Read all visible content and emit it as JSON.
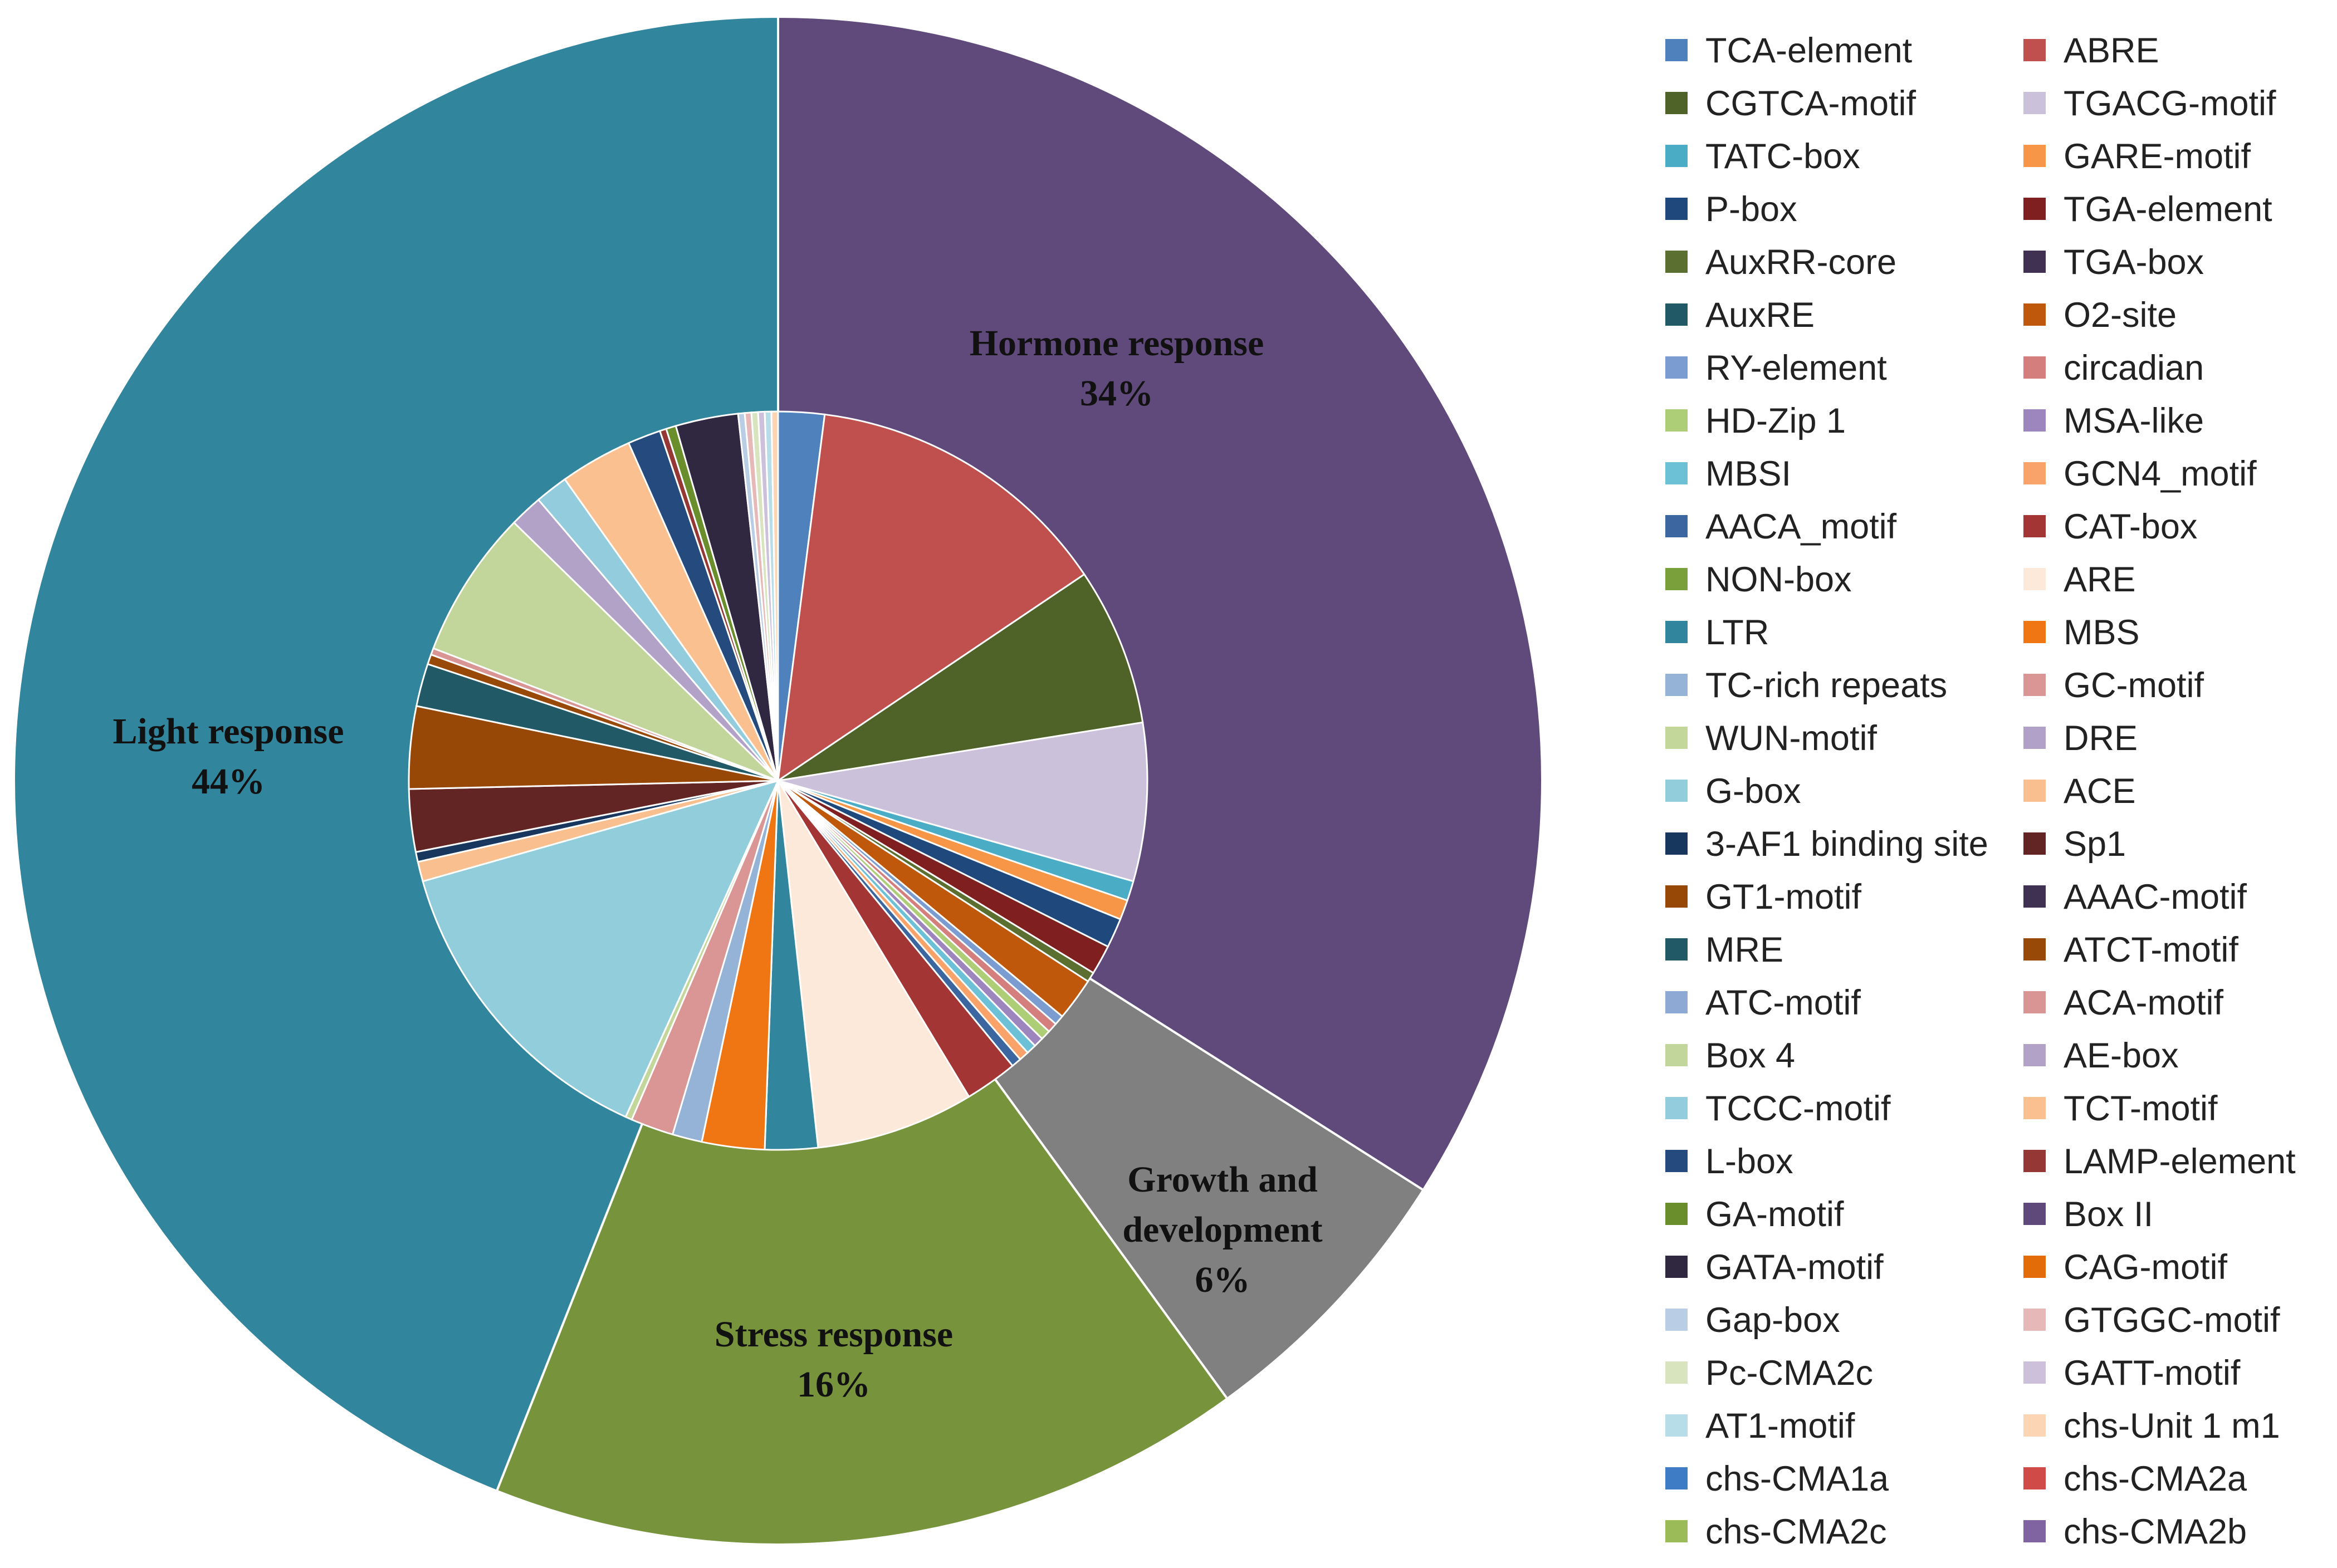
{
  "chart_data": {
    "type": "pie",
    "title": "",
    "outer_ring": [
      {
        "name": "Hormone response",
        "percent_label": "34%",
        "value": 34,
        "color": "#604A7B"
      },
      {
        "name": "Growth and development",
        "percent_label": "6%",
        "value": 6,
        "color": "#808080"
      },
      {
        "name": "Stress response",
        "percent_label": "16%",
        "value": 16,
        "color": "#77933C"
      },
      {
        "name": "Light response",
        "percent_label": "44%",
        "value": 44,
        "color": "#31859C"
      }
    ],
    "inner_pie": [
      {
        "name": "TCA-element",
        "value": 1.4,
        "color": "#4F81BD"
      },
      {
        "name": "ABRE",
        "value": 9.4,
        "color": "#C0504D"
      },
      {
        "name": "CGTCA-motif",
        "value": 4.8,
        "color": "#4F6228"
      },
      {
        "name": "TGACG-motif",
        "value": 4.8,
        "color": "#CCC1DA"
      },
      {
        "name": "TATC-box",
        "value": 0.6,
        "color": "#4BACC6"
      },
      {
        "name": "GARE-motif",
        "value": 0.6,
        "color": "#F79646"
      },
      {
        "name": "P-box",
        "value": 0.9,
        "color": "#1F497D"
      },
      {
        "name": "TGA-element",
        "value": 0.9,
        "color": "#7F1F1F"
      },
      {
        "name": "AuxRR-core",
        "value": 0.3,
        "color": "#5B7030"
      },
      {
        "name": "TGA-box",
        "value": 0.0,
        "color": "#403152"
      },
      {
        "name": "AuxRE",
        "value": 0.0,
        "color": "#215967"
      },
      {
        "name": "O2-site",
        "value": 1.3,
        "color": "#C0580C"
      },
      {
        "name": "RY-element",
        "value": 0.3,
        "color": "#7A9CD0"
      },
      {
        "name": "circadian",
        "value": 0.3,
        "color": "#D47E7E"
      },
      {
        "name": "HD-Zip 1",
        "value": 0.3,
        "color": "#ADCD77"
      },
      {
        "name": "MSA-like",
        "value": 0.3,
        "color": "#9D85BE"
      },
      {
        "name": "MBSI",
        "value": 0.3,
        "color": "#6CC1D6"
      },
      {
        "name": "GCN4_motif",
        "value": 0.3,
        "color": "#F9A36B"
      },
      {
        "name": "AACA_motif",
        "value": 0.3,
        "color": "#3C66A0"
      },
      {
        "name": "CAT-box",
        "value": 1.6,
        "color": "#A33535"
      },
      {
        "name": "NON-box",
        "value": 0.0,
        "color": "#7AA03C"
      },
      {
        "name": "ARE",
        "value": 4.8,
        "color": "#FDE9D9"
      },
      {
        "name": "LTR",
        "value": 1.6,
        "color": "#31859C"
      },
      {
        "name": "MBS",
        "value": 1.9,
        "color": "#F07613"
      },
      {
        "name": "TC-rich repeats",
        "value": 0.9,
        "color": "#95B3D7"
      },
      {
        "name": "GC-motif",
        "value": 1.3,
        "color": "#DA9694"
      },
      {
        "name": "WUN-motif",
        "value": 0.2,
        "color": "#C4D79B"
      },
      {
        "name": "DRE",
        "value": 0.0,
        "color": "#B1A0C7"
      },
      {
        "name": "G-box",
        "value": 9.6,
        "color": "#92CDDC"
      },
      {
        "name": "ACE",
        "value": 0.6,
        "color": "#FABF8F"
      },
      {
        "name": "3-AF1 binding site",
        "value": 0.3,
        "color": "#17375E"
      },
      {
        "name": "Sp1",
        "value": 1.9,
        "color": "#632523"
      },
      {
        "name": "GT1-motif",
        "value": 2.5,
        "color": "#974706"
      },
      {
        "name": "AAAC-motif",
        "value": 0.0,
        "color": "#3F3151"
      },
      {
        "name": "MRE",
        "value": 1.3,
        "color": "#215967"
      },
      {
        "name": "ATCT-motif",
        "value": 0.3,
        "color": "#984807"
      },
      {
        "name": "ATC-motif",
        "value": 0.0,
        "color": "#8DA9D4"
      },
      {
        "name": "ACA-motif",
        "value": 0.2,
        "color": "#D99594"
      },
      {
        "name": "Box 4",
        "value": 4.5,
        "color": "#C2D69B"
      },
      {
        "name": "AE-box",
        "value": 1.0,
        "color": "#B2A2C7"
      },
      {
        "name": "TCCC-motif",
        "value": 1.0,
        "color": "#93CDDD"
      },
      {
        "name": "TCT-motif",
        "value": 2.2,
        "color": "#FAC08F"
      },
      {
        "name": "L-box",
        "value": 1.0,
        "color": "#244A7E"
      },
      {
        "name": "LAMP-element",
        "value": 0.2,
        "color": "#953734"
      },
      {
        "name": "GA-motif",
        "value": 0.3,
        "color": "#6A8E2C"
      },
      {
        "name": "Box II",
        "value": 0.0,
        "color": "#5F497A"
      },
      {
        "name": "GATA-motif",
        "value": 1.9,
        "color": "#302741"
      },
      {
        "name": "CAG-motif",
        "value": 0.0,
        "color": "#E36C09"
      },
      {
        "name": "Gap-box",
        "value": 0.2,
        "color": "#B9CDE5"
      },
      {
        "name": "GTGGC-motif",
        "value": 0.2,
        "color": "#E6B9B8"
      },
      {
        "name": "Pc-CMA2c",
        "value": 0.2,
        "color": "#D7E4BD"
      },
      {
        "name": "GATT-motif",
        "value": 0.2,
        "color": "#CCC0DA"
      },
      {
        "name": "AT1-motif",
        "value": 0.2,
        "color": "#B7DEE8"
      },
      {
        "name": "chs-Unit 1 m1",
        "value": 0.2,
        "color": "#FCD5B5"
      },
      {
        "name": "chs-CMA1a",
        "value": 0.0,
        "color": "#3E7CC5"
      },
      {
        "name": "chs-CMA2a",
        "value": 0.0,
        "color": "#D04A47"
      },
      {
        "name": "chs-CMA2c",
        "value": 0.0,
        "color": "#9BBB59"
      },
      {
        "name": "chs-CMA2b",
        "value": 0.0,
        "color": "#8064A2"
      }
    ],
    "legend_placement": "right",
    "legend_columns": 2
  }
}
